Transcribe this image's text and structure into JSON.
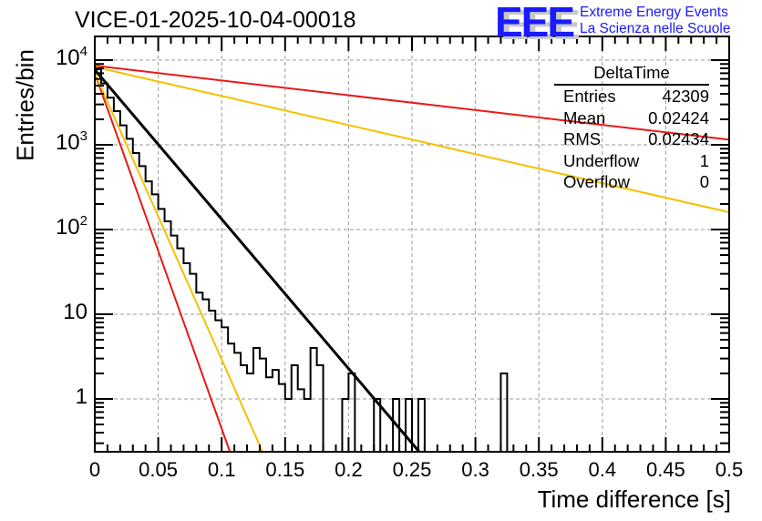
{
  "title": "VICE-01-2025-10-04-00018",
  "logo": {
    "mark": "EEE",
    "line1": "Extreme Energy Events",
    "line2": "La Scienza nelle Scuole",
    "color": "#1a1aff"
  },
  "stats_box": {
    "title": "DeltaTime",
    "rows": [
      {
        "label": "Entries",
        "value": "42309"
      },
      {
        "label": "Mean",
        "value": "0.02424"
      },
      {
        "label": "RMS",
        "value": "0.02434"
      },
      {
        "label": "Underflow",
        "value": "1"
      },
      {
        "label": "Overflow",
        "value": "0"
      }
    ]
  },
  "chart_data": {
    "type": "line",
    "title": "VICE-01-2025-10-04-00018",
    "xlabel": "Time difference [s]",
    "ylabel": "Entries/bin",
    "xlim": [
      0,
      0.5
    ],
    "ylim": [
      0.238,
      15000
    ],
    "yscale": "log",
    "grid": true,
    "x_ticks": [
      "0",
      "0.05",
      "0.1",
      "0.15",
      "0.2",
      "0.25",
      "0.3",
      "0.35",
      "0.4",
      "0.45",
      "0.5"
    ],
    "y_ticks": [
      {
        "value": 10000,
        "base": "10",
        "exp": "4"
      },
      {
        "value": 1000,
        "base": "10",
        "exp": "3"
      },
      {
        "value": 100,
        "base": "10",
        "exp": "2"
      },
      {
        "value": 10,
        "base": "10",
        "exp": ""
      },
      {
        "value": 1,
        "base": "1",
        "exp": ""
      }
    ],
    "histogram": {
      "name": "DeltaTime",
      "bin_width": 0.005,
      "color": "#000000",
      "bins": [
        [
          0.0,
          7800
        ],
        [
          0.005,
          5300
        ],
        [
          0.01,
          3600
        ],
        [
          0.015,
          2500
        ],
        [
          0.02,
          1700
        ],
        [
          0.025,
          1180
        ],
        [
          0.03,
          800
        ],
        [
          0.035,
          560
        ],
        [
          0.04,
          370
        ],
        [
          0.045,
          260
        ],
        [
          0.05,
          175
        ],
        [
          0.055,
          125
        ],
        [
          0.06,
          85
        ],
        [
          0.065,
          60
        ],
        [
          0.07,
          40
        ],
        [
          0.075,
          30
        ],
        [
          0.08,
          18
        ],
        [
          0.085,
          15
        ],
        [
          0.09,
          11
        ],
        [
          0.095,
          8.5
        ],
        [
          0.1,
          7
        ],
        [
          0.105,
          4.5
        ],
        [
          0.11,
          3.5
        ],
        [
          0.115,
          2.5
        ],
        [
          0.12,
          2
        ],
        [
          0.125,
          4
        ],
        [
          0.13,
          3
        ],
        [
          0.135,
          1.8
        ],
        [
          0.14,
          2.2
        ],
        [
          0.145,
          1.5
        ],
        [
          0.15,
          1
        ],
        [
          0.155,
          2.5
        ],
        [
          0.16,
          1.3
        ],
        [
          0.165,
          1
        ],
        [
          0.17,
          4
        ],
        [
          0.175,
          2.5
        ],
        [
          0.18,
          0.001
        ],
        [
          0.185,
          0.001
        ],
        [
          0.19,
          0.001
        ],
        [
          0.195,
          1
        ],
        [
          0.2,
          2
        ],
        [
          0.205,
          0.001
        ],
        [
          0.21,
          0.001
        ],
        [
          0.215,
          0.001
        ],
        [
          0.22,
          1
        ],
        [
          0.225,
          0.001
        ],
        [
          0.23,
          0.001
        ],
        [
          0.235,
          1
        ],
        [
          0.24,
          0.001
        ],
        [
          0.245,
          1
        ],
        [
          0.25,
          0.001
        ],
        [
          0.255,
          1
        ],
        [
          0.26,
          0.001
        ],
        [
          0.265,
          0.001
        ],
        [
          0.27,
          0.001
        ],
        [
          0.275,
          0.001
        ],
        [
          0.28,
          0.001
        ],
        [
          0.285,
          0.001
        ],
        [
          0.29,
          0.001
        ],
        [
          0.295,
          0.001
        ],
        [
          0.3,
          0.001
        ],
        [
          0.305,
          0.001
        ],
        [
          0.31,
          0.001
        ],
        [
          0.315,
          0.001
        ],
        [
          0.32,
          2
        ]
      ]
    },
    "series": [
      {
        "name": "fit-black",
        "color": "#000000",
        "x": [
          0,
          0.2557
        ],
        "y": [
          7700,
          0.238
        ]
      },
      {
        "name": "red-steep",
        "color": "#e8191a",
        "x": [
          0,
          0.1065
        ],
        "y": [
          7000,
          0.238
        ]
      },
      {
        "name": "yellow-steep",
        "color": "#f5c000",
        "x": [
          0,
          0.1322
        ],
        "y": [
          7000,
          0.238
        ]
      },
      {
        "name": "red-shallow",
        "color": "#e8191a",
        "x": [
          0,
          0.5
        ],
        "y": [
          8600,
          1150
        ]
      },
      {
        "name": "yellow-shallow",
        "color": "#f5c000",
        "x": [
          0,
          0.5
        ],
        "y": [
          8300,
          160
        ]
      }
    ]
  }
}
